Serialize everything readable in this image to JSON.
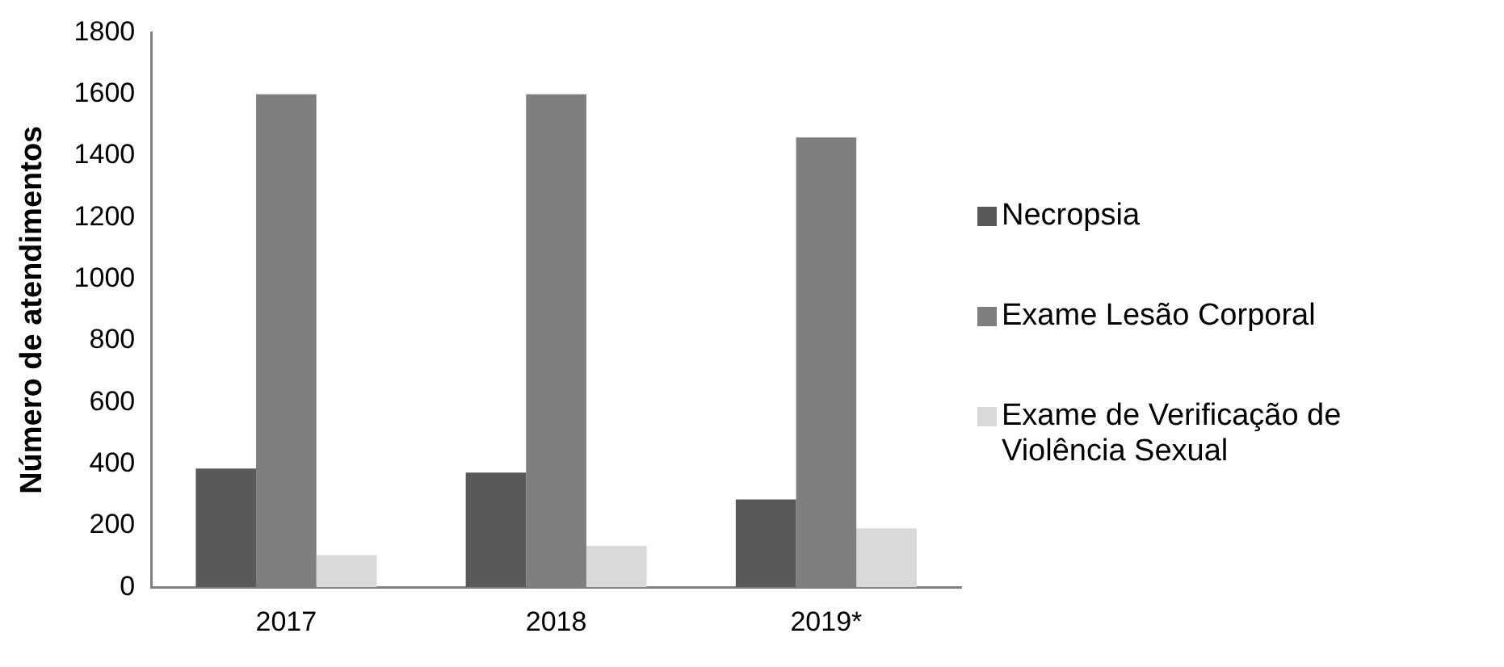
{
  "chart_data": {
    "type": "bar",
    "ylabel": "Número de atendimentos",
    "categories": [
      "2017",
      "2018",
      "2019*"
    ],
    "series": [
      {
        "name": "Necropsia",
        "color": "#595959",
        "values": [
          385,
          372,
          285
        ]
      },
      {
        "name": "Exame Lesão Corporal",
        "color": "#7f7f7f",
        "values": [
          1600,
          1600,
          1460
        ]
      },
      {
        "name": "Exame de Verificação de Violência Sexual",
        "color": "#d9d9d9",
        "values": [
          104,
          134,
          191
        ]
      }
    ],
    "ylim": [
      0,
      1800
    ],
    "yticks": [
      0,
      200,
      400,
      600,
      800,
      1000,
      1200,
      1400,
      1600,
      1800
    ],
    "grid": false,
    "legend": "right"
  }
}
